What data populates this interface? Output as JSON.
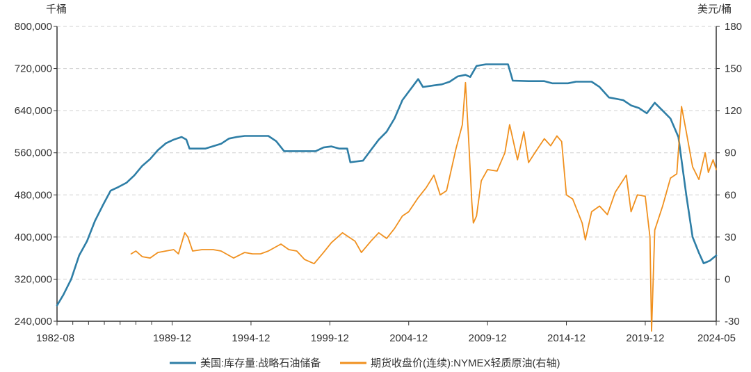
{
  "chart_data": {
    "type": "line",
    "title": "",
    "left_unit": "千桶",
    "right_unit": "美元/桶",
    "x_range": [
      1982.6,
      2024.4
    ],
    "left_axis": {
      "ylim": [
        240000,
        800000
      ],
      "ticks": [
        240000,
        320000,
        400000,
        480000,
        560000,
        640000,
        720000,
        800000
      ],
      "tick_labels": [
        "240,000",
        "320,000",
        "400,000",
        "480,000",
        "560,000",
        "640,000",
        "720,000",
        "800,000"
      ]
    },
    "right_axis": {
      "ylim": [
        -30,
        180
      ],
      "ticks": [
        -30,
        0,
        30,
        60,
        90,
        120,
        150,
        180
      ],
      "tick_labels": [
        "-30",
        "0",
        "30",
        "60",
        "90",
        "120",
        "150",
        "180"
      ]
    },
    "x_ticks": [
      {
        "x": 1982.6,
        "label": "1982-08"
      },
      {
        "x": 1989.9,
        "label": "1989-12"
      },
      {
        "x": 1994.9,
        "label": "1994-12"
      },
      {
        "x": 1999.9,
        "label": "1999-12"
      },
      {
        "x": 2004.9,
        "label": "2004-12"
      },
      {
        "x": 2009.9,
        "label": "2009-12"
      },
      {
        "x": 2014.9,
        "label": "2014-12"
      },
      {
        "x": 2019.9,
        "label": "2019-12"
      },
      {
        "x": 2024.4,
        "label": "2024-05"
      }
    ],
    "x_minor_ticks": [
      1983.6,
      1984.6,
      1985.6,
      1986.6,
      1987.6,
      1988.6
    ],
    "legend": [
      {
        "name": "美国:库存量:战略石油储备",
        "color": "#2E7EA6"
      },
      {
        "name": "期货收盘价(连续):NYMEX轻质原油(右轴)",
        "color": "#F0901E"
      }
    ],
    "series": [
      {
        "name": "美国:库存量:战略石油储备",
        "axis": "left",
        "color": "#2E7EA6",
        "points": [
          [
            1982.6,
            270000
          ],
          [
            1983.0,
            290000
          ],
          [
            1983.5,
            320000
          ],
          [
            1984.0,
            365000
          ],
          [
            1984.5,
            392000
          ],
          [
            1985.0,
            430000
          ],
          [
            1985.5,
            460000
          ],
          [
            1986.0,
            488000
          ],
          [
            1986.5,
            495000
          ],
          [
            1987.0,
            503000
          ],
          [
            1987.5,
            517000
          ],
          [
            1988.0,
            535000
          ],
          [
            1988.5,
            548000
          ],
          [
            1989.0,
            565000
          ],
          [
            1989.5,
            578000
          ],
          [
            1990.0,
            585000
          ],
          [
            1990.5,
            590000
          ],
          [
            1990.8,
            585000
          ],
          [
            1991.0,
            568000
          ],
          [
            1992.0,
            568000
          ],
          [
            1993.0,
            577000
          ],
          [
            1993.5,
            587000
          ],
          [
            1994.0,
            590000
          ],
          [
            1994.5,
            592000
          ],
          [
            1995.0,
            592000
          ],
          [
            1996.0,
            592000
          ],
          [
            1996.5,
            582000
          ],
          [
            1997.0,
            563000
          ],
          [
            1998.0,
            563000
          ],
          [
            1999.0,
            563000
          ],
          [
            1999.5,
            570000
          ],
          [
            2000.0,
            572000
          ],
          [
            2000.5,
            568000
          ],
          [
            2001.0,
            568000
          ],
          [
            2001.2,
            542000
          ],
          [
            2002.0,
            545000
          ],
          [
            2002.5,
            565000
          ],
          [
            2003.0,
            585000
          ],
          [
            2003.5,
            600000
          ],
          [
            2004.0,
            625000
          ],
          [
            2004.5,
            660000
          ],
          [
            2005.0,
            680000
          ],
          [
            2005.5,
            700000
          ],
          [
            2005.8,
            685000
          ],
          [
            2006.5,
            688000
          ],
          [
            2007.0,
            690000
          ],
          [
            2007.5,
            695000
          ],
          [
            2008.0,
            705000
          ],
          [
            2008.5,
            708000
          ],
          [
            2008.8,
            704000
          ],
          [
            2009.2,
            725000
          ],
          [
            2009.8,
            728000
          ],
          [
            2010.5,
            728000
          ],
          [
            2011.2,
            728000
          ],
          [
            2011.5,
            697000
          ],
          [
            2012.5,
            696000
          ],
          [
            2013.5,
            696000
          ],
          [
            2014.0,
            692000
          ],
          [
            2015.0,
            692000
          ],
          [
            2015.5,
            695000
          ],
          [
            2016.5,
            695000
          ],
          [
            2017.0,
            685000
          ],
          [
            2017.6,
            665000
          ],
          [
            2018.5,
            660000
          ],
          [
            2019.0,
            650000
          ],
          [
            2019.5,
            645000
          ],
          [
            2020.0,
            635000
          ],
          [
            2020.5,
            655000
          ],
          [
            2021.0,
            640000
          ],
          [
            2021.5,
            625000
          ],
          [
            2022.0,
            590000
          ],
          [
            2022.5,
            480000
          ],
          [
            2022.9,
            400000
          ],
          [
            2023.3,
            370000
          ],
          [
            2023.6,
            350000
          ],
          [
            2024.0,
            355000
          ],
          [
            2024.4,
            365000
          ]
        ]
      },
      {
        "name": "期货收盘价(连续):NYMEX轻质原油(右轴)",
        "axis": "right",
        "color": "#F0901E",
        "points": [
          [
            1987.3,
            18
          ],
          [
            1987.6,
            20
          ],
          [
            1988.0,
            16
          ],
          [
            1988.5,
            15
          ],
          [
            1989.0,
            19
          ],
          [
            1989.5,
            20
          ],
          [
            1990.0,
            21
          ],
          [
            1990.3,
            18
          ],
          [
            1990.7,
            33
          ],
          [
            1990.9,
            30
          ],
          [
            1991.2,
            20
          ],
          [
            1991.8,
            21
          ],
          [
            1992.5,
            21
          ],
          [
            1993.0,
            20
          ],
          [
            1993.8,
            15
          ],
          [
            1994.5,
            19
          ],
          [
            1995.0,
            18
          ],
          [
            1995.5,
            18
          ],
          [
            1996.0,
            20
          ],
          [
            1996.8,
            25
          ],
          [
            1997.3,
            21
          ],
          [
            1997.8,
            20
          ],
          [
            1998.3,
            14
          ],
          [
            1998.9,
            11
          ],
          [
            1999.5,
            19
          ],
          [
            2000.0,
            26
          ],
          [
            2000.7,
            33
          ],
          [
            2001.5,
            27
          ],
          [
            2001.9,
            19
          ],
          [
            2002.5,
            27
          ],
          [
            2003.0,
            33
          ],
          [
            2003.5,
            29
          ],
          [
            2004.0,
            36
          ],
          [
            2004.5,
            45
          ],
          [
            2004.9,
            48
          ],
          [
            2005.5,
            58
          ],
          [
            2006.0,
            65
          ],
          [
            2006.5,
            74
          ],
          [
            2006.9,
            60
          ],
          [
            2007.3,
            63
          ],
          [
            2007.9,
            93
          ],
          [
            2008.3,
            110
          ],
          [
            2008.5,
            140
          ],
          [
            2008.7,
            100
          ],
          [
            2008.9,
            55
          ],
          [
            2009.0,
            40
          ],
          [
            2009.2,
            45
          ],
          [
            2009.5,
            70
          ],
          [
            2009.9,
            78
          ],
          [
            2010.5,
            77
          ],
          [
            2011.0,
            90
          ],
          [
            2011.3,
            110
          ],
          [
            2011.8,
            85
          ],
          [
            2012.2,
            105
          ],
          [
            2012.5,
            83
          ],
          [
            2012.9,
            90
          ],
          [
            2013.5,
            100
          ],
          [
            2013.9,
            95
          ],
          [
            2014.3,
            102
          ],
          [
            2014.6,
            98
          ],
          [
            2014.9,
            60
          ],
          [
            2015.3,
            57
          ],
          [
            2015.9,
            40
          ],
          [
            2016.1,
            28
          ],
          [
            2016.5,
            48
          ],
          [
            2017.0,
            52
          ],
          [
            2017.5,
            46
          ],
          [
            2018.0,
            62
          ],
          [
            2018.7,
            74
          ],
          [
            2019.0,
            48
          ],
          [
            2019.4,
            60
          ],
          [
            2019.9,
            59
          ],
          [
            2020.2,
            30
          ],
          [
            2020.3,
            -37
          ],
          [
            2020.5,
            35
          ],
          [
            2021.0,
            52
          ],
          [
            2021.5,
            72
          ],
          [
            2021.9,
            75
          ],
          [
            2022.2,
            123
          ],
          [
            2022.5,
            105
          ],
          [
            2022.9,
            80
          ],
          [
            2023.3,
            71
          ],
          [
            2023.7,
            90
          ],
          [
            2023.9,
            76
          ],
          [
            2024.2,
            85
          ],
          [
            2024.4,
            78
          ]
        ]
      }
    ]
  }
}
